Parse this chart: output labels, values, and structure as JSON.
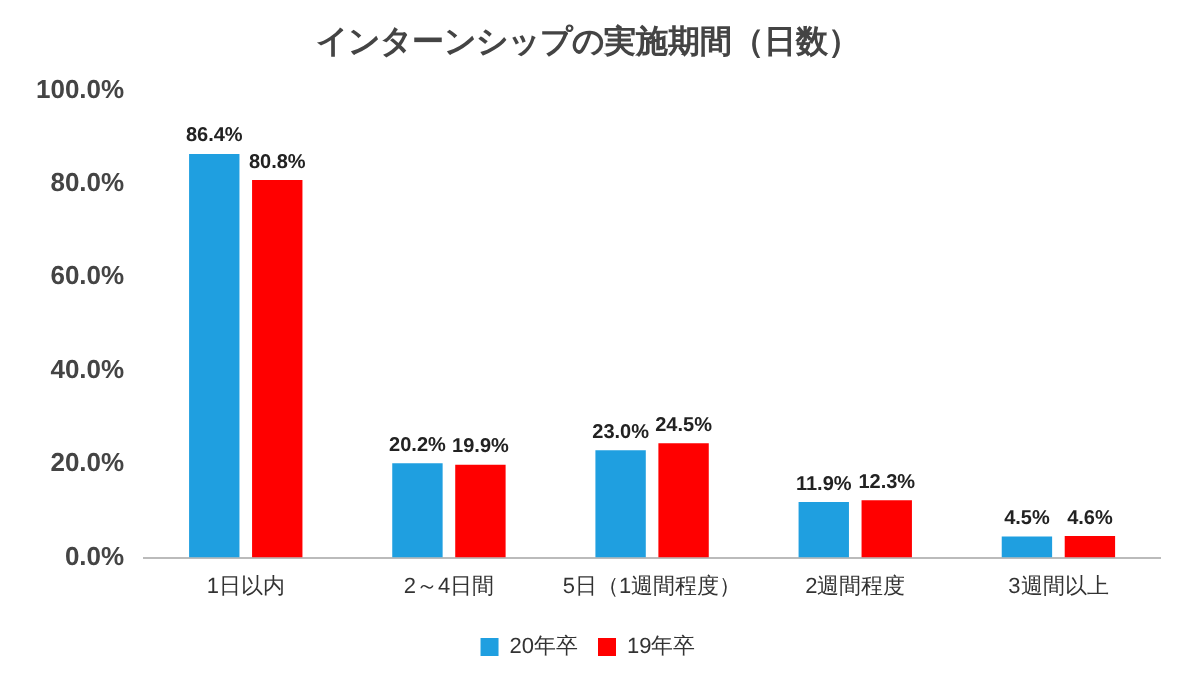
{
  "chart_data": {
    "type": "bar",
    "title": "インターンシップの実施期間（日数）",
    "categories": [
      "1日以内",
      "2～4日間",
      "5日（1週間程度）",
      "2週間程度",
      "3週間以上"
    ],
    "series": [
      {
        "name": "20年卒",
        "color": "#1f9fe0",
        "values": [
          86.4,
          20.2,
          23.0,
          11.9,
          4.5
        ],
        "value_labels": [
          "86.4%",
          "20.2%",
          "23.0%",
          "11.9%",
          "4.5%"
        ]
      },
      {
        "name": "19年卒",
        "color": "#ff0000",
        "values": [
          80.8,
          19.9,
          24.5,
          12.3,
          4.6
        ],
        "value_labels": [
          "80.8%",
          "19.9%",
          "24.5%",
          "12.3%",
          "4.6%"
        ]
      }
    ],
    "ylim": [
      0,
      100
    ],
    "yticks": [
      {
        "value": 0,
        "label": "0.0%"
      },
      {
        "value": 20,
        "label": "20.0%"
      },
      {
        "value": 40,
        "label": "40.0%"
      },
      {
        "value": 60,
        "label": "60.0%"
      },
      {
        "value": 80,
        "label": "80.0%"
      },
      {
        "value": 100,
        "label": "100.0%"
      }
    ],
    "grid": false,
    "legend": "bottom"
  }
}
